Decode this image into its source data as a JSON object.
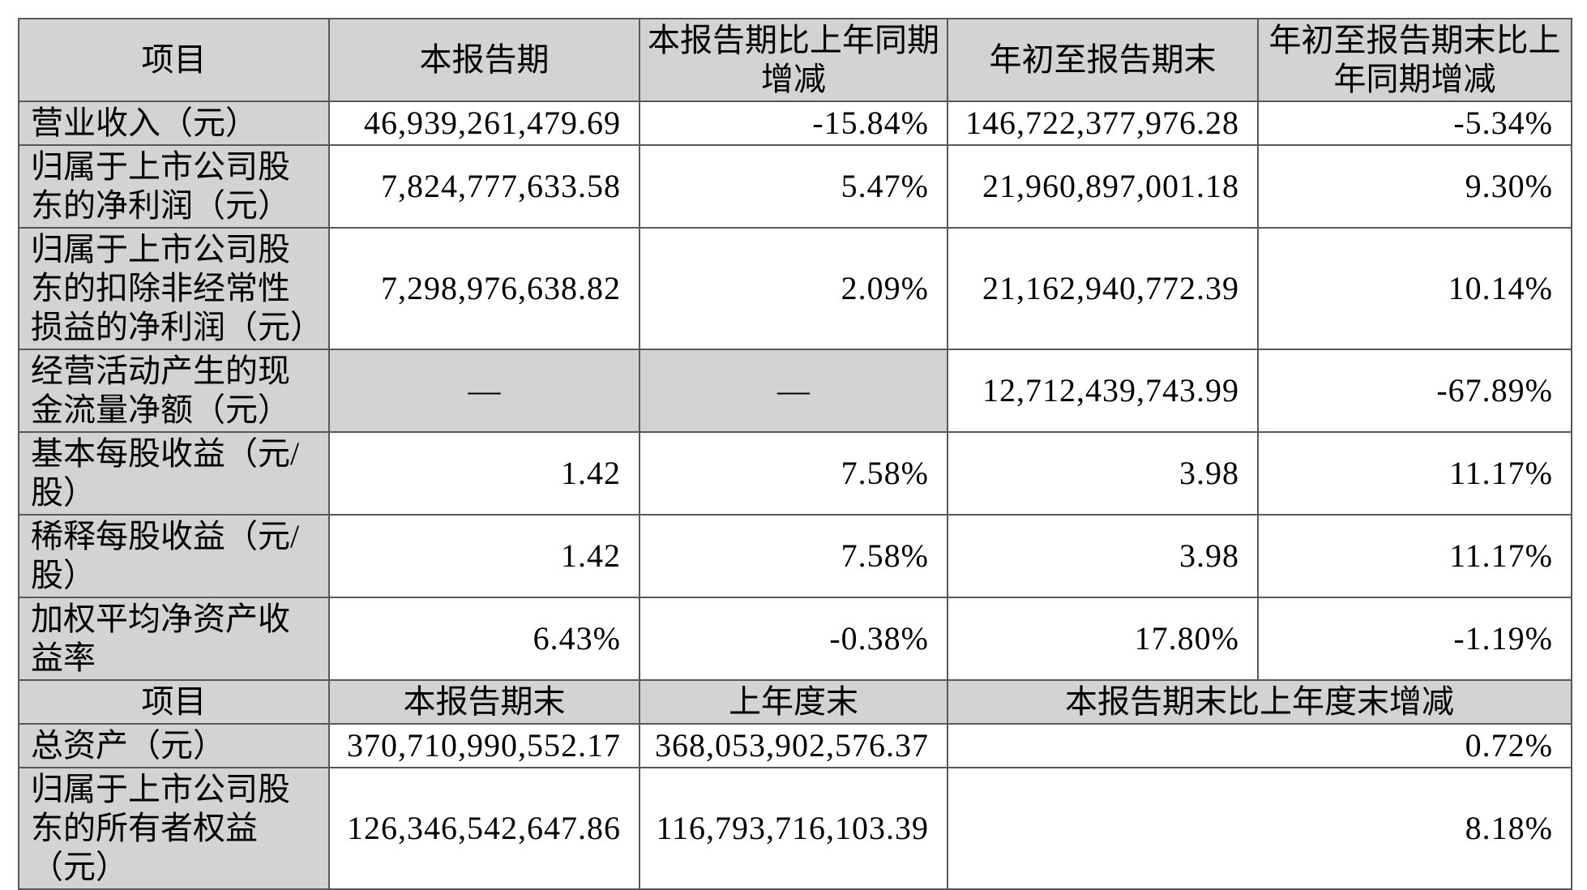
{
  "colors": {
    "header_bg": "#d3d3d3",
    "cell_bg": "#ffffff",
    "border": "#58585a",
    "text": "#000000"
  },
  "table": {
    "section1": {
      "columns": [
        "项目",
        "本报告期",
        "本报告期比上年同期增减",
        "年初至报告期末",
        "年初至报告期末比上年同期增减"
      ],
      "rows": [
        {
          "item": "营业收入（元）",
          "cells": [
            "46,939,261,479.69",
            "-15.84%",
            "146,722,377,976.28",
            "-5.34%"
          ]
        },
        {
          "item": "归属于上市公司股东的净利润（元）",
          "cells": [
            "7,824,777,633.58",
            "5.47%",
            "21,960,897,001.18",
            "9.30%"
          ]
        },
        {
          "item": "归属于上市公司股东的扣除非经常性损益的净利润（元）",
          "cells": [
            "7,298,976,638.82",
            "2.09%",
            "21,162,940,772.39",
            "10.14%"
          ]
        },
        {
          "item": "经营活动产生的现金流量净额（元）",
          "cells": [
            "—",
            "—",
            "12,712,439,743.99",
            "-67.89%"
          ]
        },
        {
          "item": "基本每股收益（元/股）",
          "cells": [
            "1.42",
            "7.58%",
            "3.98",
            "11.17%"
          ]
        },
        {
          "item": "稀释每股收益（元/股）",
          "cells": [
            "1.42",
            "7.58%",
            "3.98",
            "11.17%"
          ]
        },
        {
          "item": "加权平均净资产收益率",
          "cells": [
            "6.43%",
            "-0.38%",
            "17.80%",
            "-1.19%"
          ]
        }
      ]
    },
    "section2": {
      "columns": [
        "项目",
        "本报告期末",
        "上年度末",
        "本报告期末比上年度末增减"
      ],
      "rows": [
        {
          "item": "总资产（元）",
          "cells": [
            "370,710,990,552.17",
            "368,053,902,576.37",
            "0.72%"
          ]
        },
        {
          "item": "归属于上市公司股东的所有者权益（元）",
          "cells": [
            "126,346,542,647.86",
            "116,793,716,103.39",
            "8.18%"
          ]
        }
      ]
    }
  }
}
